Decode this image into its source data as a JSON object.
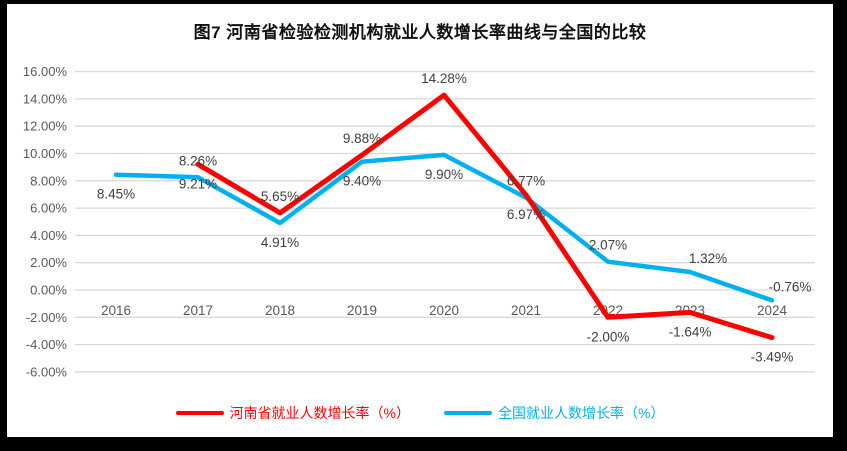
{
  "title": "图7  河南省检验检测机构就业人数增长率曲线与全国的比较",
  "legend": [
    {
      "label": "河南省就业人数增长率（%）",
      "color": "#ff0000"
    },
    {
      "label": "全国就业人数增长率（%）",
      "color": "#00b0f0"
    }
  ],
  "chart_data": {
    "type": "line",
    "title": "图7  河南省检验检测机构就业人数增长率曲线与全国的比较",
    "categories": [
      "2016",
      "2017",
      "2018",
      "2019",
      "2020",
      "2021",
      "2022",
      "2023",
      "2024"
    ],
    "series": [
      {
        "name": "河南省就业人数增长率（%）",
        "color": "#ff0000",
        "values": [
          null,
          9.21,
          5.65,
          9.88,
          14.28,
          6.97,
          -2.0,
          -1.64,
          -3.49
        ],
        "point_labels": [
          null,
          "9.21%",
          "5.65%",
          "9.88%",
          "14.28%",
          "6.97%",
          "-2.00%",
          "-1.64%",
          "-3.49%"
        ],
        "label_pos": [
          null,
          "below",
          "above",
          "above",
          "above",
          "below",
          "below",
          "below",
          "below"
        ]
      },
      {
        "name": "全国就业人数增长率（%）",
        "color": "#00b0f0",
        "values": [
          8.45,
          8.26,
          4.91,
          9.4,
          9.9,
          6.77,
          2.07,
          1.32,
          -0.76
        ],
        "point_labels": [
          "8.45%",
          "8.26%",
          "4.91%",
          "9.40%",
          "9.90%",
          "6.77%",
          "2.07%",
          "1.32%",
          "-0.76%"
        ],
        "label_pos": [
          "below",
          "above",
          "below",
          "below",
          "below",
          "above",
          "above",
          "above-right",
          "above-right"
        ]
      }
    ],
    "yticks": [
      "16.00%",
      "14.00%",
      "12.00%",
      "10.00%",
      "8.00%",
      "6.00%",
      "4.00%",
      "2.00%",
      "0.00%",
      "-2.00%",
      "-4.00%",
      "-6.00%"
    ],
    "ylim": [
      -6,
      16
    ],
    "ytick_step": 2,
    "grid": true,
    "legend_position": "bottom",
    "colors": {
      "grid": "#d9d9d9",
      "axis_text": "#595959",
      "data_label_text": "#404040",
      "background": "#ffffff",
      "frame_border": "#000000"
    }
  }
}
